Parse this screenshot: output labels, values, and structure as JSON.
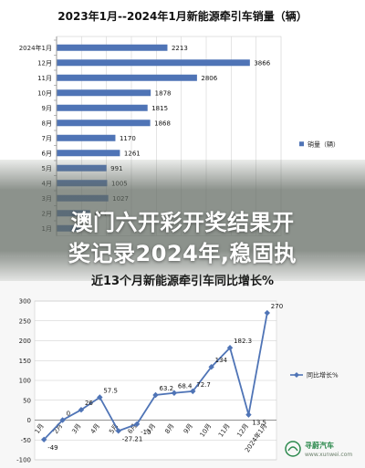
{
  "headline": {
    "line1": "澳门六开彩开奖结果开",
    "line2": "奖记录2024年,稳固执"
  },
  "watermark": {
    "text": "寻蔚汽车",
    "url": "www.xunwei.com"
  },
  "chart_data": [
    {
      "type": "bar",
      "orientation": "horizontal",
      "title": "2023年1月--2024年1月新能源牵引车销量（辆）",
      "categories": [
        "2024年1月",
        "12月",
        "11月",
        "10月",
        "9月",
        "8月",
        "7月",
        "6月",
        "5月",
        "4月",
        "3月",
        "2月",
        "1月"
      ],
      "series": [
        {
          "name": "销量（辆）",
          "values": [
            2213,
            3866,
            2806,
            1878,
            1815,
            1868,
            1170,
            1261,
            991,
            1005,
            1027,
            664,
            480
          ],
          "labels": [
            "2213",
            "3866",
            "2806",
            "1878",
            "1815",
            "1868",
            "1170",
            "1261",
            "991",
            "1005",
            "1027",
            "664",
            ""
          ]
        }
      ],
      "xlim": [
        0,
        4500
      ],
      "legend": "right",
      "grid": true,
      "colors": {
        "bar": "#4f74b6",
        "grid": "#d4d4d4"
      }
    },
    {
      "type": "line",
      "title": "近13个月新能源牵引车同比增长%",
      "categories": [
        "1月",
        "2月",
        "3月",
        "4月",
        "5月",
        "6月",
        "7月",
        "8月",
        "9月",
        "10月",
        "11月",
        "12月",
        "2024年1月"
      ],
      "series": [
        {
          "name": "同比增长%",
          "values": [
            -49,
            0,
            26,
            57.5,
            -27.21,
            -10,
            63.2,
            68.4,
            72.7,
            134,
            182.3,
            13.5,
            270
          ],
          "labels": [
            "-49",
            "0",
            "26",
            "57.5",
            "-27.21",
            "-10",
            "63.2",
            "68.4",
            "72.7",
            "134",
            "182.3",
            "13.5",
            "270"
          ]
        }
      ],
      "ylim": [
        -100,
        300
      ],
      "yticks": [
        -100,
        -50,
        0,
        50,
        100,
        150,
        200,
        250,
        300
      ],
      "legend": "right",
      "grid": true,
      "colors": {
        "line": "#4f74b6",
        "grid": "#c9c9c9"
      }
    }
  ]
}
